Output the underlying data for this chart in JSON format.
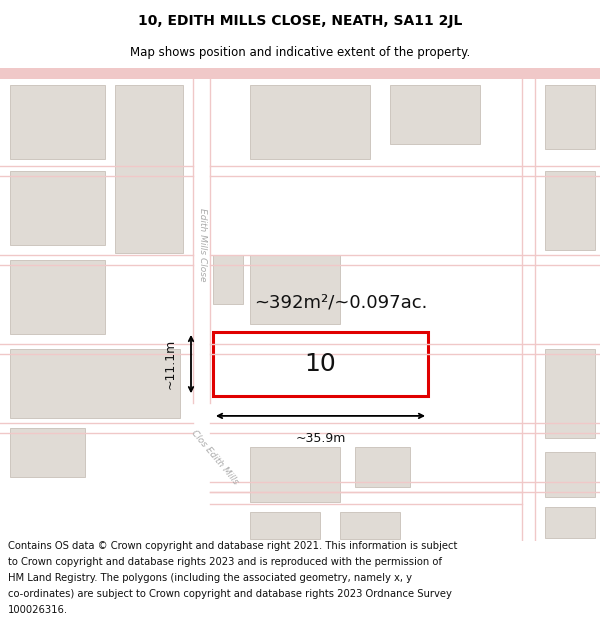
{
  "title": "10, EDITH MILLS CLOSE, NEATH, SA11 2JL",
  "subtitle": "Map shows position and indicative extent of the property.",
  "area_text": "~392m²/~0.097ac.",
  "width_label": "~35.9m",
  "height_label": "~11.1m",
  "number_label": "10",
  "footer_lines": [
    "Contains OS data © Crown copyright and database right 2021. This information is subject",
    "to Crown copyright and database rights 2023 and is reproduced with the permission of",
    "HM Land Registry. The polygons (including the associated geometry, namely x, y",
    "co-ordinates) are subject to Crown copyright and database rights 2023 Ordnance Survey",
    "100026316."
  ],
  "map_bg": "#f7f3f0",
  "road_color": "#f0c8c8",
  "building_color": "#e0dbd5",
  "building_edge": "#c8c0b8",
  "highlight_color": "#e00000",
  "highlight_fill": "#ffffff",
  "title_fontsize": 10,
  "subtitle_fontsize": 8.5,
  "footer_fontsize": 7.2,
  "area_fontsize": 13,
  "number_fontsize": 18,
  "measure_fontsize": 9
}
